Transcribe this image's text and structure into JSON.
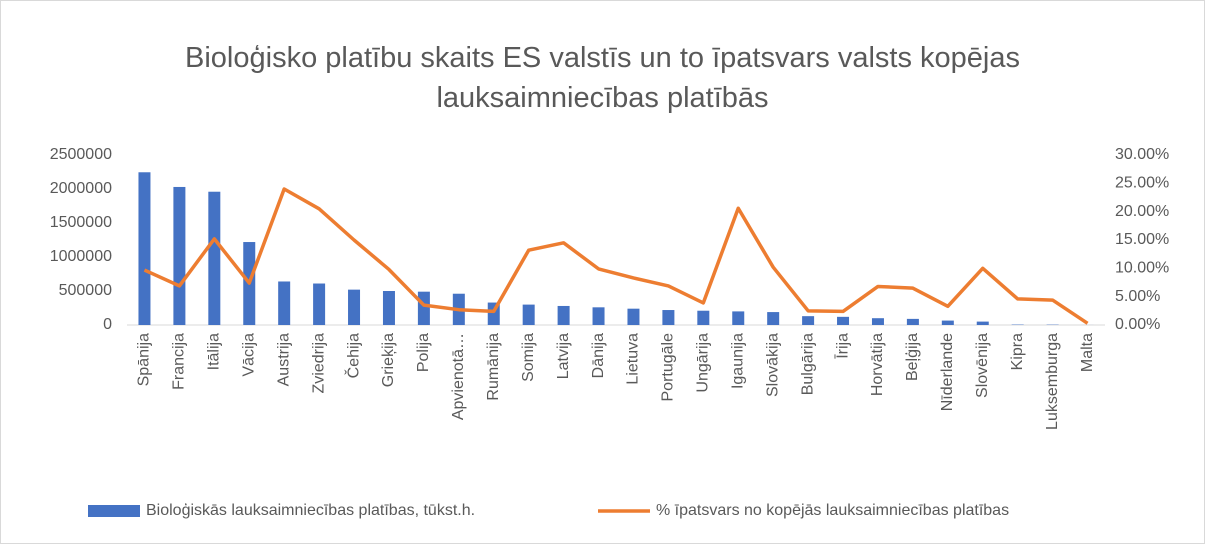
{
  "chart_data": {
    "type": "bar",
    "title": "Bioloģisko platību skaits ES valstīs un to īpatsvars valsts kopējas lauksaimniecības platībās",
    "categories": [
      "Spānija",
      "Francija",
      "Itālija",
      "Vācija",
      "Austrija",
      "Zviedrija",
      "Čehija",
      "Grieķija",
      "Polija",
      "Apvienotā…",
      "Rumānija",
      "Somija",
      "Latvija",
      "Dānija",
      "Lietuva",
      "Portugāle",
      "Ungārija",
      "Igaunija",
      "Slovākija",
      "Bulgārija",
      "Īrija",
      "Horvātija",
      "Beļģija",
      "Nīderlande",
      "Slovēnija",
      "Kipra",
      "Luksemburga",
      "Malta"
    ],
    "series": [
      {
        "name": "Bioloģiskās lauksaimniecības platības, tūkst.h.",
        "color": "#4472c4",
        "type": "bar",
        "values": [
          2246000,
          2030000,
          1960000,
          1220000,
          640000,
          610000,
          520000,
          500000,
          490000,
          460000,
          330000,
          300000,
          280000,
          260000,
          240000,
          220000,
          210000,
          200000,
          190000,
          130000,
          120000,
          100000,
          90000,
          65000,
          50000,
          6000,
          5000,
          500
        ]
      },
      {
        "name": "% īpatsvars no kopējās lauksaimniecības platības",
        "color": "#ed7d31",
        "type": "line",
        "axis": "y2",
        "values": [
          9.7,
          6.9,
          15.2,
          7.4,
          24.0,
          20.5,
          15.0,
          9.8,
          3.5,
          2.7,
          2.4,
          13.2,
          14.5,
          9.9,
          8.3,
          6.9,
          3.9,
          20.6,
          10.2,
          2.5,
          2.4,
          6.8,
          6.5,
          3.3,
          10.0,
          4.6,
          4.4,
          0.3
        ]
      }
    ],
    "ylim": [
      0,
      2500000
    ],
    "yticks": [
      0,
      500000,
      1000000,
      1500000,
      2000000,
      2500000
    ],
    "y2lim": [
      0,
      30
    ],
    "y2ticks": [
      {
        "value": 0,
        "label": "0.00%"
      },
      {
        "value": 5,
        "label": "5.00%"
      },
      {
        "value": 10,
        "label": "10.00%"
      },
      {
        "value": 15,
        "label": "15.00%"
      },
      {
        "value": 20,
        "label": "20.00%"
      },
      {
        "value": 25,
        "label": "25.00%"
      },
      {
        "value": 30,
        "label": "30.00%"
      }
    ],
    "grid": false,
    "legend": "bottom"
  }
}
